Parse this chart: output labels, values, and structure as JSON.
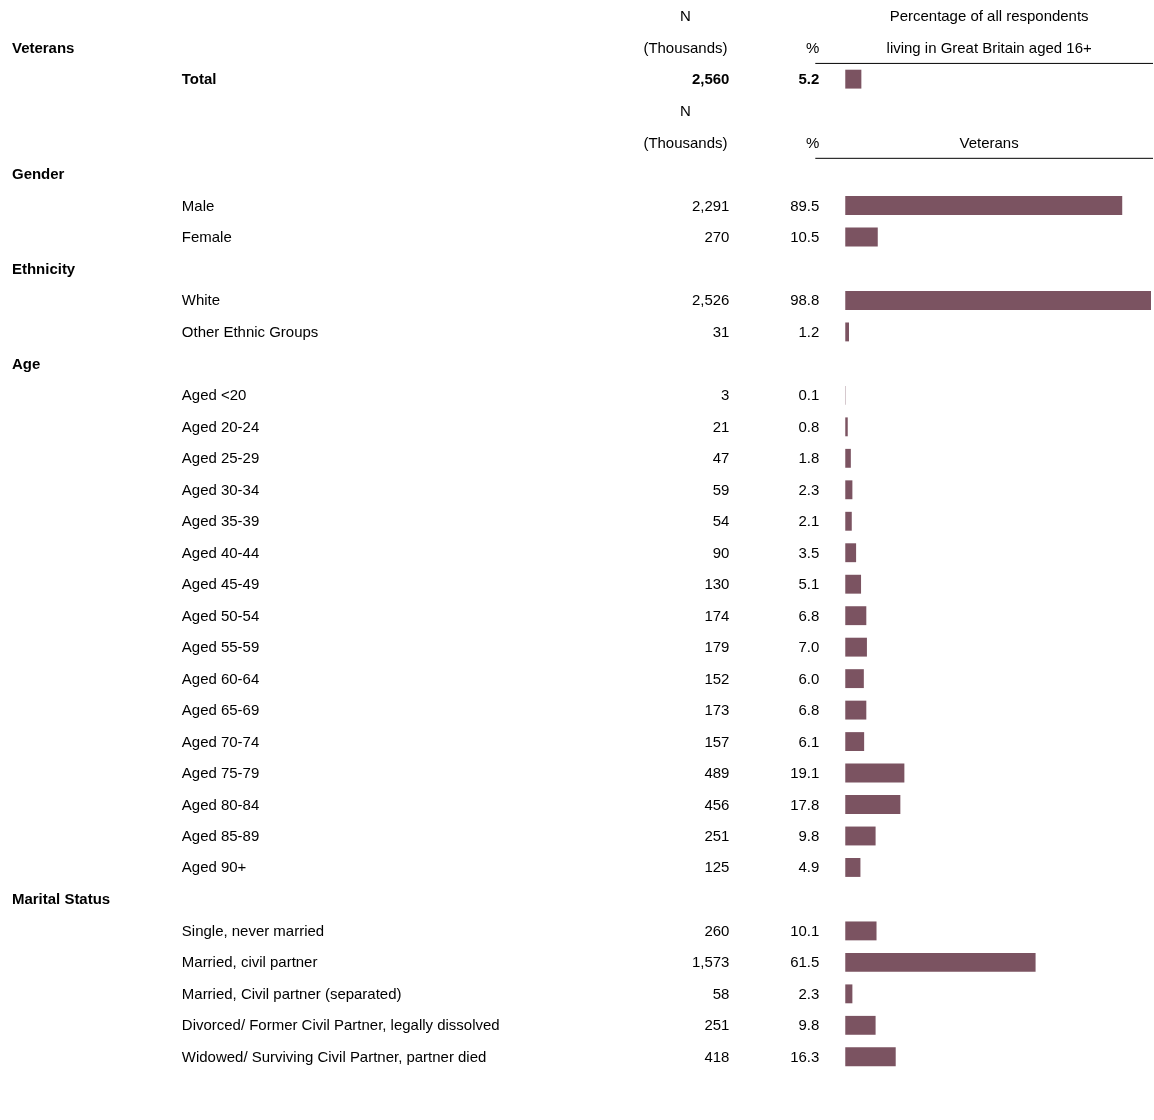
{
  "chart_data": [
    {
      "type": "bar",
      "orientation": "horizontal",
      "ylabel": "Veterans",
      "xlabel": "Percentage of all respondents living in Great Britain aged 16+",
      "categories": [
        "Total"
      ],
      "series": [
        {
          "name": "%",
          "color": "#7b5361",
          "values": [
            5.2
          ],
          "value_labels": [
            "5.2"
          ]
        }
      ],
      "annotations": [
        "N (Thousands)",
        "2,560"
      ]
    },
    {
      "type": "bar",
      "orientation": "horizontal",
      "ylabel": "Gender",
      "xlabel": "Veterans",
      "categories": [
        "Male",
        "Female"
      ],
      "series": [
        {
          "name": "%",
          "color": "#7b5361",
          "values": [
            89.5,
            10.5
          ],
          "value_labels": [
            "89.5",
            "10.5"
          ]
        }
      ],
      "annotations": [
        "N (Thousands)",
        "2,291",
        "270"
      ]
    },
    {
      "type": "bar",
      "orientation": "horizontal",
      "ylabel": "Ethnicity",
      "categories": [
        "White",
        "Other Ethnic Groups"
      ],
      "series": [
        {
          "color": "#7b5361",
          "values": [
            98.8,
            1.2
          ],
          "value_labels": [
            "98.8",
            "1.2"
          ]
        }
      ],
      "annotations": [
        "2,526",
        "31"
      ]
    },
    {
      "type": "bar",
      "orientation": "horizontal",
      "ylabel": "Age",
      "categories": [
        "Aged <20",
        "Aged 20-24",
        "Aged 25-29",
        "Aged 30-34",
        "Aged 35-39",
        "Aged 40-44",
        "Aged 45-49",
        "Aged 50-54",
        "Aged 55-59",
        "Aged 60-64",
        "Aged 65-69",
        "Aged 70-74",
        "Aged 75-79",
        "Aged 80-84",
        "Aged 85-89",
        "Aged 90+"
      ],
      "series": [
        {
          "color": "#7b5361",
          "values": [
            0.1,
            0.8,
            1.8,
            2.3,
            2.1,
            3.5,
            5.1,
            6.8,
            7.0,
            6.0,
            6.8,
            6.1,
            19.1,
            17.8,
            9.8,
            4.9
          ],
          "value_labels": [
            "0.1",
            "0.8",
            "1.8",
            "2.3",
            "2.1",
            "3.5",
            "5.1",
            "6.8",
            "7.0",
            "6.0",
            "6.8",
            "6.1",
            "19.1",
            "17.8",
            "9.8",
            "4.9"
          ]
        }
      ],
      "annotations": [
        "3",
        "21",
        "47",
        "59",
        "54",
        "90",
        "130",
        "174",
        "179",
        "152",
        "173",
        "157",
        "489",
        "456",
        "251",
        "125"
      ]
    },
    {
      "type": "bar",
      "orientation": "horizontal",
      "ylabel": "Marital Status",
      "categories": [
        "Single, never married",
        "Married, civil partner",
        "Married, Civil partner (separated)",
        "Divorced/ Former Civil Partner, legally dissolved",
        "Widowed/ Surviving Civil Partner, partner died"
      ],
      "series": [
        {
          "color": "#7b5361",
          "values": [
            10.1,
            61.5,
            2.3,
            9.8,
            16.3
          ],
          "value_labels": [
            "10.1",
            "61.5",
            "2.3",
            "9.8",
            "16.3"
          ]
        }
      ],
      "annotations": [
        "260",
        "1,573",
        "58",
        "251",
        "418"
      ]
    }
  ]
}
